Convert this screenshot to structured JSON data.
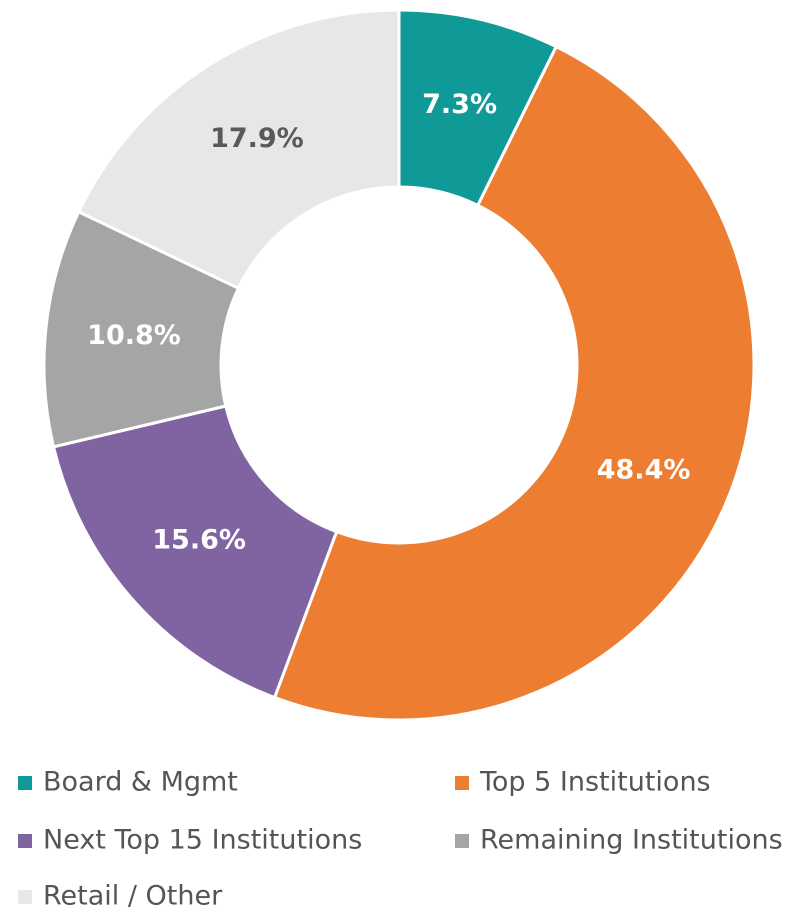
{
  "chart_data": {
    "type": "donut",
    "categories": [
      "Board & Mgmt",
      "Top 5 Institutions",
      "Next Top 15 Institutions",
      "Remaining Institutions",
      "Retail / Other"
    ],
    "values": [
      7.3,
      48.4,
      15.6,
      10.8,
      17.9
    ],
    "value_labels": [
      "7.3%",
      "48.4%",
      "15.6%",
      "10.8%",
      "17.9%"
    ],
    "colors": [
      "#0f9a97",
      "#ed7d31",
      "#8064a2",
      "#a5a5a5",
      "#e7e7e7"
    ],
    "legend": "bottom"
  }
}
